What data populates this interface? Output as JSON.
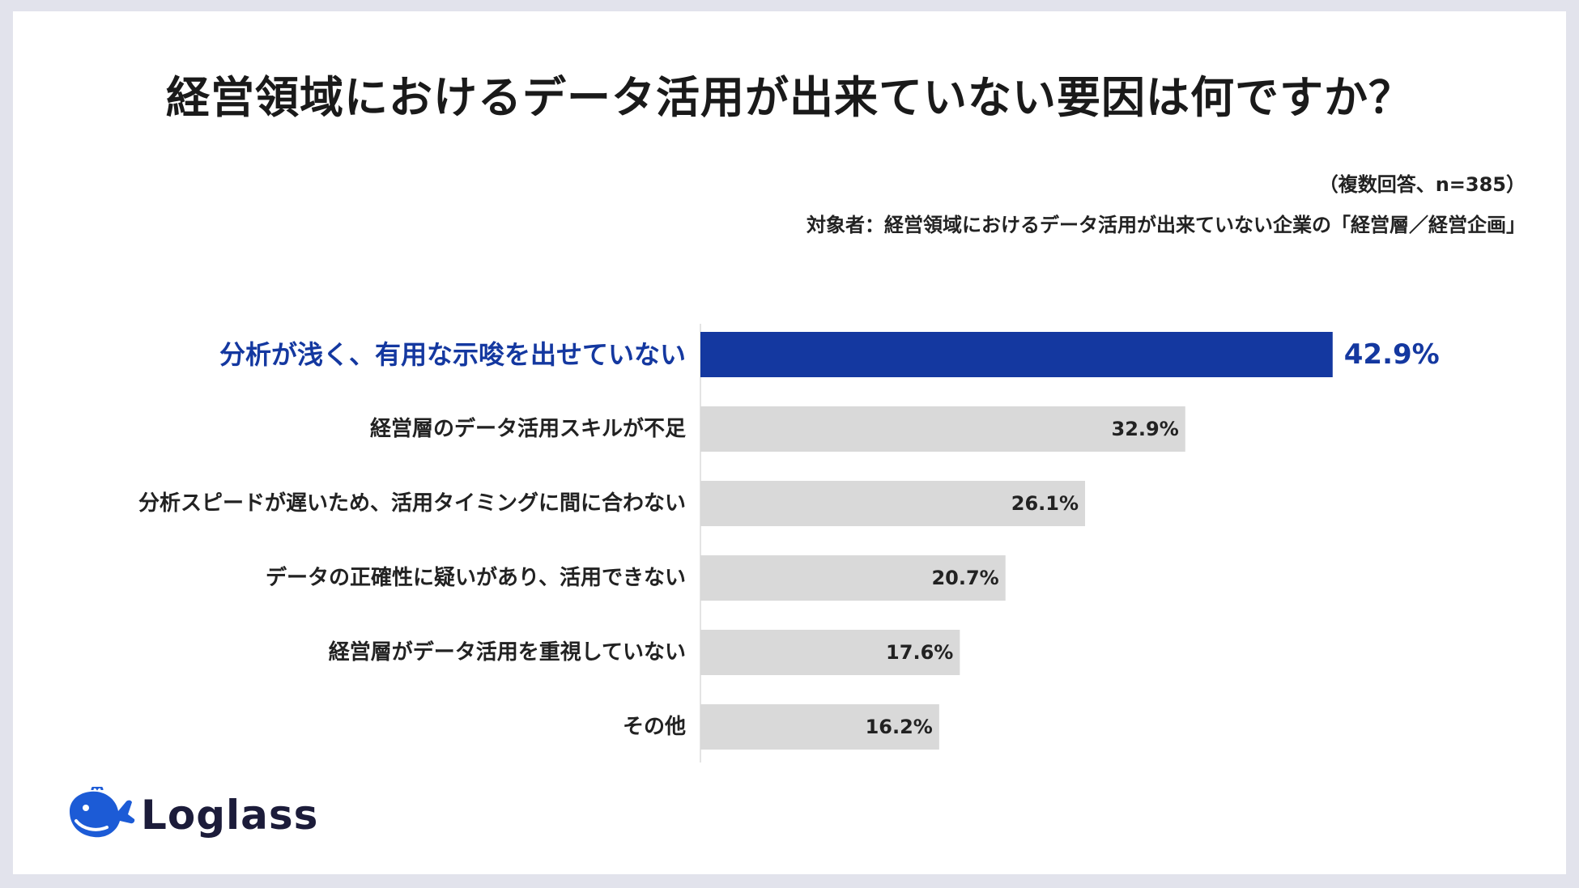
{
  "title": "経営領域におけるデータ活用が出来ていない要因は何ですか？",
  "respondents": "（複数回答、n=385）",
  "target": "対象者：経営領域におけるデータ活用が出来ていない企業の「経営層／経営企画」",
  "brand": "Loglass",
  "colors": {
    "highlight_bar": "#1438a0",
    "bar": "#d9d9d9",
    "highlight_text": "#1438a0",
    "text": "#222222",
    "axis": "#c8c8c8",
    "brand": "#1c5bd6"
  },
  "chart_data": {
    "type": "bar",
    "orientation": "horizontal",
    "unit": "%",
    "xlim": [
      0,
      50
    ],
    "grid": false,
    "highlight_index": 0,
    "categories": [
      "分析が浅く、有用な示唆を出せていない",
      "経営層のデータ活用スキルが不足",
      "分析スピードが遅いため、活用タイミングに間に合わない",
      "データの正確性に疑いがあり、活用できない",
      "経営層がデータ活用を重視していない",
      "その他"
    ],
    "values": [
      42.9,
      32.9,
      26.1,
      20.7,
      17.6,
      16.2
    ],
    "value_labels": [
      "42.9%",
      "32.9%",
      "26.1%",
      "20.7%",
      "17.6%",
      "16.2%"
    ]
  }
}
